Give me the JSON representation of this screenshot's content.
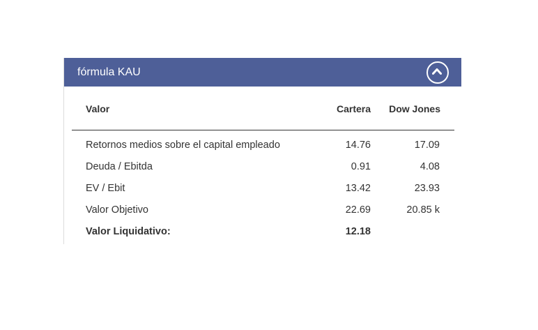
{
  "panel": {
    "title": "fórmula KAU",
    "collapse_icon": "chevron-up-circle-icon",
    "header_color": "#4e5f98"
  },
  "table": {
    "headers": {
      "label": "Valor",
      "col1": "Cartera",
      "col2": "Dow Jones"
    },
    "rows": [
      {
        "label": "Retornos medios sobre el capital empleado",
        "col1": "14.76",
        "col2": "17.09"
      },
      {
        "label": "Deuda / Ebitda",
        "col1": "0.91",
        "col2": "4.08"
      },
      {
        "label": "EV / Ebit",
        "col1": "13.42",
        "col2": "23.93"
      },
      {
        "label": "Valor Objetivo",
        "col1": "22.69",
        "col2": "20.85 k"
      }
    ],
    "summary": {
      "label": "Valor Liquidativo:",
      "col1": "12.18",
      "col2": ""
    }
  }
}
